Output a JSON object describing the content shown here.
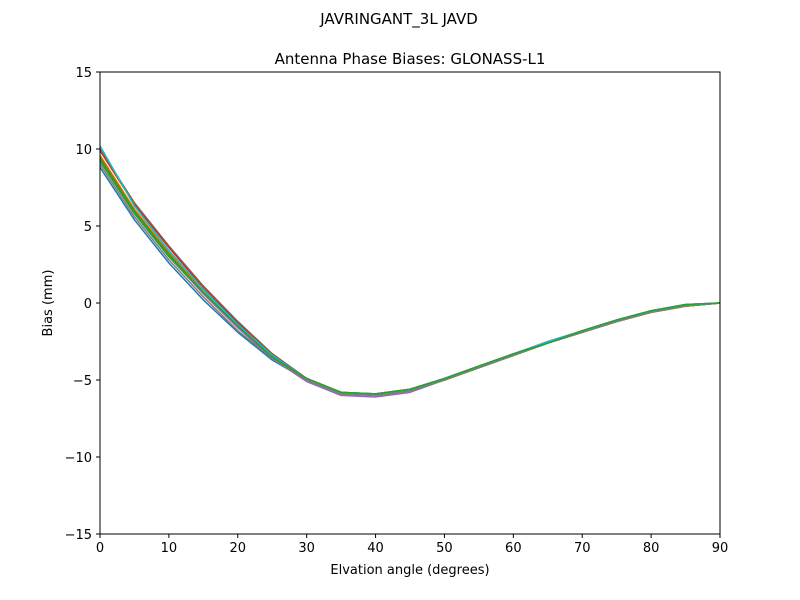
{
  "figure": {
    "suptitle": "JAVRINGANT_3L   JAVD"
  },
  "chart_data": {
    "type": "line",
    "title": "Antenna Phase Biases: GLONASS-L1",
    "xlabel": "Elvation angle (degrees)",
    "ylabel": "Bias (mm)",
    "xlim": [
      0,
      90
    ],
    "ylim": [
      -15,
      15
    ],
    "xticks": [
      0,
      10,
      20,
      30,
      40,
      50,
      60,
      70,
      80,
      90
    ],
    "yticks": [
      -15,
      -10,
      -5,
      0,
      5,
      10,
      15
    ],
    "xtick_labels": [
      "0",
      "10",
      "20",
      "30",
      "40",
      "50",
      "60",
      "70",
      "80",
      "90"
    ],
    "ytick_labels": [
      "−15",
      "−10",
      "−5",
      "0",
      "5",
      "10",
      "15"
    ],
    "grid": false,
    "x": [
      0,
      5,
      10,
      15,
      20,
      25,
      30,
      35,
      40,
      45,
      50,
      55,
      60,
      65,
      70,
      75,
      80,
      85,
      90
    ],
    "series": [
      {
        "color": "#1f77b4",
        "values": [
          8.8,
          5.4,
          2.6,
          0.2,
          -1.9,
          -3.7,
          -5.0,
          -5.8,
          -5.9,
          -5.6,
          -5.0,
          -4.2,
          -3.4,
          -2.6,
          -1.9,
          -1.2,
          -0.6,
          -0.2,
          0.0
        ]
      },
      {
        "color": "#ff7f0e",
        "values": [
          9.6,
          6.1,
          3.3,
          0.8,
          -1.5,
          -3.5,
          -5.0,
          -5.9,
          -6.0,
          -5.7,
          -5.0,
          -4.2,
          -3.4,
          -2.6,
          -1.9,
          -1.2,
          -0.6,
          -0.2,
          0.0
        ]
      },
      {
        "color": "#2ca02c",
        "values": [
          9.2,
          5.8,
          3.0,
          0.6,
          -1.6,
          -3.5,
          -4.9,
          -5.8,
          -5.9,
          -5.6,
          -4.9,
          -4.1,
          -3.3,
          -2.6,
          -1.8,
          -1.1,
          -0.5,
          -0.1,
          0.0
        ]
      },
      {
        "color": "#d62728",
        "values": [
          9.9,
          6.4,
          3.6,
          1.0,
          -1.3,
          -3.3,
          -4.9,
          -5.8,
          -6.0,
          -5.7,
          -5.0,
          -4.2,
          -3.4,
          -2.6,
          -1.9,
          -1.2,
          -0.6,
          -0.2,
          0.0
        ]
      },
      {
        "color": "#9467bd",
        "values": [
          9.4,
          5.9,
          3.1,
          0.6,
          -1.6,
          -3.6,
          -5.1,
          -6.0,
          -6.1,
          -5.8,
          -5.0,
          -4.2,
          -3.4,
          -2.6,
          -1.9,
          -1.2,
          -0.6,
          -0.2,
          0.0
        ]
      },
      {
        "color": "#8c564b",
        "values": [
          10.0,
          6.5,
          3.7,
          1.1,
          -1.2,
          -3.3,
          -4.9,
          -5.8,
          -6.0,
          -5.7,
          -5.0,
          -4.2,
          -3.4,
          -2.6,
          -1.9,
          -1.2,
          -0.6,
          -0.2,
          0.0
        ]
      },
      {
        "color": "#808000",
        "values": [
          9.5,
          6.0,
          3.2,
          0.7,
          -1.5,
          -3.5,
          -5.0,
          -5.9,
          -6.0,
          -5.7,
          -5.0,
          -4.2,
          -3.4,
          -2.6,
          -1.9,
          -1.2,
          -0.6,
          -0.2,
          0.0
        ]
      },
      {
        "color": "#7f7f7f",
        "values": [
          9.0,
          5.6,
          2.8,
          0.4,
          -1.8,
          -3.6,
          -5.0,
          -5.9,
          -6.0,
          -5.7,
          -5.0,
          -4.2,
          -3.4,
          -2.6,
          -1.9,
          -1.2,
          -0.6,
          -0.2,
          0.0
        ]
      },
      {
        "color": "#17becf",
        "values": [
          10.2,
          6.3,
          3.4,
          0.9,
          -1.4,
          -3.4,
          -4.9,
          -5.8,
          -5.9,
          -5.6,
          -4.9,
          -4.1,
          -3.3,
          -2.5,
          -1.8,
          -1.1,
          -0.5,
          -0.1,
          0.0
        ]
      },
      {
        "color": "#2ca02c",
        "values": [
          9.3,
          5.9,
          3.1,
          0.7,
          -1.5,
          -3.5,
          -4.9,
          -5.8,
          -5.9,
          -5.6,
          -4.9,
          -4.1,
          -3.3,
          -2.6,
          -1.8,
          -1.1,
          -0.5,
          -0.1,
          0.0
        ]
      }
    ]
  }
}
